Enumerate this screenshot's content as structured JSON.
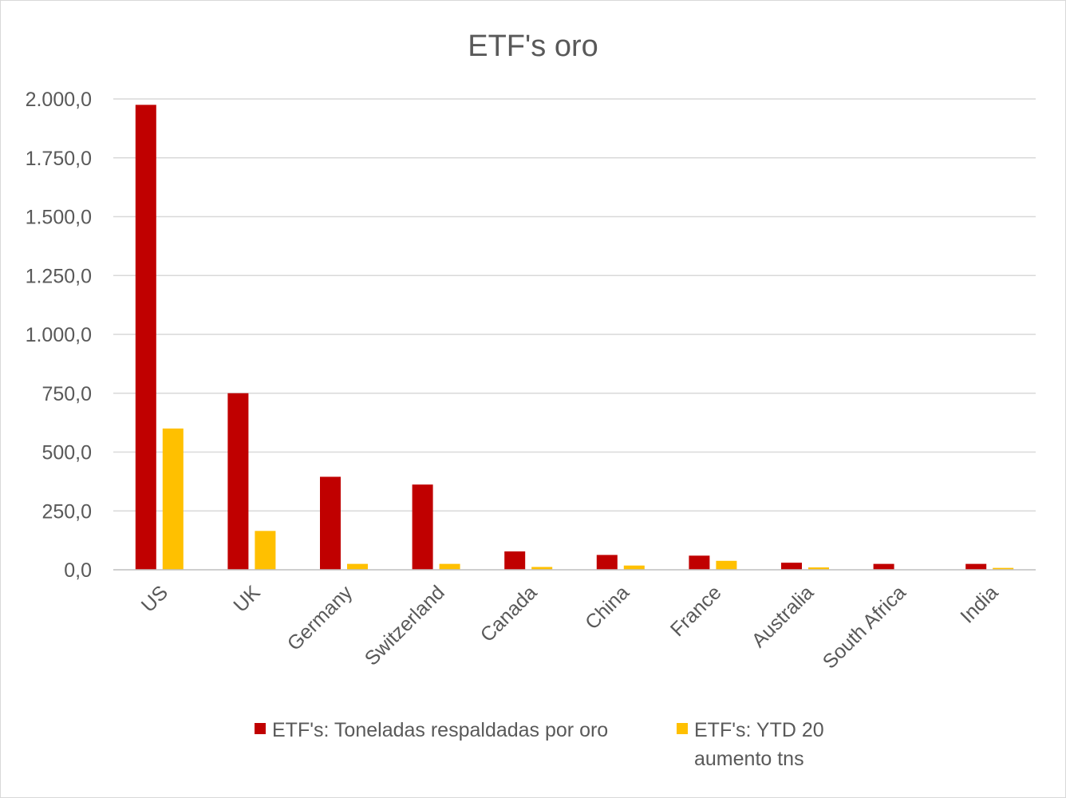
{
  "chart_data": {
    "type": "bar",
    "title": "ETF's oro",
    "categories": [
      "US",
      "UK",
      "Germany",
      "Switzerland",
      "Canada",
      "China",
      "France",
      "Australia",
      "South Africa",
      "India"
    ],
    "series": [
      {
        "name": "ETF's: Toneladas respaldadas por oro",
        "color": "#c00000",
        "values": [
          1975,
          750,
          395,
          362,
          78,
          63,
          60,
          30,
          25,
          25
        ]
      },
      {
        "name_lines": [
          "ETF's: YTD 20",
          "aumento tns"
        ],
        "color": "#ffc000",
        "values": [
          600,
          165,
          25,
          25,
          12,
          18,
          38,
          10,
          0,
          8
        ]
      }
    ],
    "y_ticks": [
      "0,0",
      "250,0",
      "500,0",
      "750,0",
      "1.000,0",
      "1.250,0",
      "1.500,0",
      "1.750,0",
      "2.000,0"
    ],
    "ylim": [
      0,
      2000
    ],
    "xlabel": "",
    "ylabel": "",
    "grid": true,
    "legend_position": "bottom"
  }
}
